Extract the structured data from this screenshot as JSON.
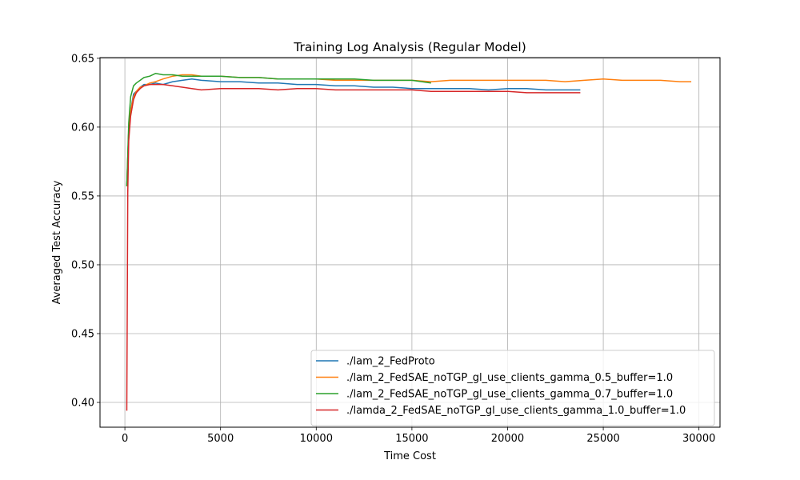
{
  "chart_data": {
    "type": "line",
    "title": "Training Log Analysis (Regular Model)",
    "xlabel": "Time Cost",
    "ylabel": "Averaged Test Accuracy",
    "xlim": [
      -1300,
      31100
    ],
    "ylim": [
      0.382,
      0.6505
    ],
    "xticks": [
      0,
      5000,
      10000,
      15000,
      20000,
      25000,
      30000
    ],
    "yticks": [
      0.4,
      0.45,
      0.5,
      0.55,
      0.6,
      0.65
    ],
    "xtick_labels": [
      "0",
      "5000",
      "10000",
      "15000",
      "20000",
      "25000",
      "30000"
    ],
    "ytick_labels": [
      "0.40",
      "0.45",
      "0.50",
      "0.55",
      "0.60",
      "0.65"
    ],
    "grid": true,
    "legend_position": "lower-right",
    "series": [
      {
        "name": "./lam_2_FedProto",
        "color": "#1f77b4",
        "x": [
          100,
          200,
          300,
          450,
          600,
          800,
          1000,
          1300,
          1600,
          2000,
          2500,
          3000,
          3500,
          4000,
          5000,
          6000,
          7000,
          8000,
          9000,
          10000,
          11000,
          12000,
          13000,
          14000,
          15000,
          16000,
          17000,
          18000,
          19000,
          20000,
          21000,
          22000,
          23000,
          23800
        ],
        "y": [
          0.557,
          0.598,
          0.612,
          0.624,
          0.626,
          0.629,
          0.631,
          0.631,
          0.632,
          0.631,
          0.633,
          0.634,
          0.635,
          0.634,
          0.633,
          0.633,
          0.632,
          0.632,
          0.631,
          0.631,
          0.63,
          0.63,
          0.629,
          0.629,
          0.628,
          0.628,
          0.628,
          0.628,
          0.627,
          0.628,
          0.628,
          0.627,
          0.627,
          0.627
        ]
      },
      {
        "name": "./lam_2_FedSAE_noTGP_gl_use_clients_gamma_0.5_buffer=1.0",
        "color": "#ff7f0e",
        "x": [
          100,
          200,
          300,
          450,
          600,
          800,
          1000,
          1300,
          1600,
          2000,
          2500,
          3000,
          3500,
          4000,
          5000,
          6000,
          7000,
          8000,
          9000,
          10000,
          11000,
          12000,
          13000,
          14000,
          15000,
          16000,
          17000,
          18000,
          19000,
          20000,
          21000,
          22000,
          23000,
          24000,
          25000,
          26000,
          27000,
          28000,
          29000,
          29600
        ],
        "y": [
          0.557,
          0.598,
          0.612,
          0.622,
          0.626,
          0.629,
          0.63,
          0.632,
          0.633,
          0.635,
          0.637,
          0.638,
          0.638,
          0.637,
          0.637,
          0.636,
          0.636,
          0.635,
          0.635,
          0.635,
          0.634,
          0.634,
          0.634,
          0.634,
          0.634,
          0.633,
          0.634,
          0.634,
          0.634,
          0.634,
          0.634,
          0.634,
          0.633,
          0.634,
          0.635,
          0.634,
          0.634,
          0.634,
          0.633,
          0.633
        ]
      },
      {
        "name": "./lam_2_FedSAE_noTGP_gl_use_clients_gamma_0.7_buffer=1.0",
        "color": "#2ca02c",
        "x": [
          100,
          200,
          300,
          450,
          600,
          800,
          1000,
          1300,
          1600,
          2000,
          2500,
          3000,
          3500,
          4000,
          5000,
          6000,
          7000,
          8000,
          9000,
          10000,
          11000,
          12000,
          13000,
          14000,
          15000,
          16000
        ],
        "y": [
          0.557,
          0.603,
          0.622,
          0.63,
          0.632,
          0.634,
          0.636,
          0.637,
          0.639,
          0.638,
          0.638,
          0.637,
          0.637,
          0.637,
          0.637,
          0.636,
          0.636,
          0.635,
          0.635,
          0.635,
          0.635,
          0.635,
          0.634,
          0.634,
          0.634,
          0.632
        ]
      },
      {
        "name": "./lamda_2_FedSAE_noTGP_gl_use_clients_gamma_1.0_buffer=1.0",
        "color": "#d62728",
        "x": [
          100,
          150,
          200,
          300,
          450,
          600,
          800,
          1000,
          1300,
          1600,
          2000,
          2500,
          3000,
          3500,
          4000,
          5000,
          6000,
          7000,
          8000,
          9000,
          10000,
          11000,
          12000,
          13000,
          14000,
          15000,
          16000,
          17000,
          18000,
          19000,
          20000,
          21000,
          22000,
          23000,
          23800
        ],
        "y": [
          0.394,
          0.552,
          0.59,
          0.608,
          0.62,
          0.625,
          0.628,
          0.63,
          0.631,
          0.631,
          0.631,
          0.63,
          0.629,
          0.628,
          0.627,
          0.628,
          0.628,
          0.628,
          0.627,
          0.628,
          0.628,
          0.627,
          0.627,
          0.627,
          0.627,
          0.627,
          0.626,
          0.626,
          0.626,
          0.626,
          0.626,
          0.625,
          0.625,
          0.625,
          0.625
        ]
      }
    ]
  }
}
